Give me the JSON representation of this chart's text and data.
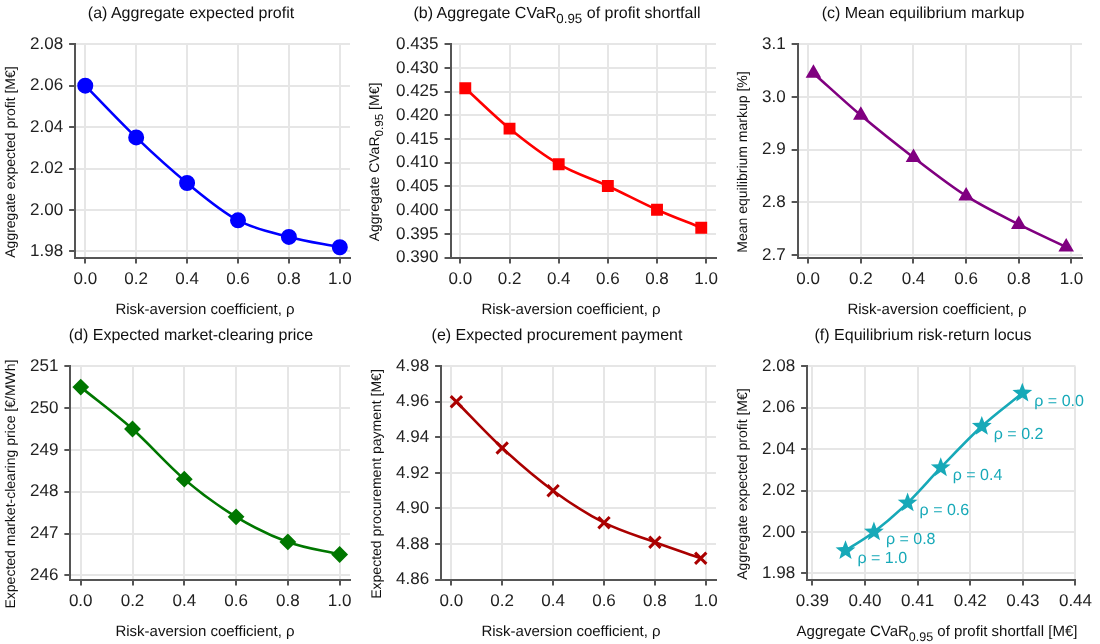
{
  "chart_data": [
    {
      "type": "line",
      "title": "(a) Aggregate expected profit",
      "xlabel": "Risk-aversion coefficient, ρ",
      "ylabel": "Aggregate expected profit [M€]",
      "x": [
        0,
        0.2,
        0.4,
        0.6,
        0.8,
        1.0
      ],
      "series": [
        {
          "color": "#0000ff",
          "values": [
            2.06,
            2.035,
            2.013,
            1.995,
            1.987,
            1.982
          ]
        }
      ],
      "xlim": [
        -0.04,
        1.04
      ],
      "xticks": [
        {
          "value": 0,
          "label": "0.0"
        },
        0.2,
        0.4,
        0.6,
        0.8,
        {
          "value": 1,
          "label": "1.0"
        }
      ],
      "ylim": [
        1.977,
        2.08
      ],
      "yticks": [
        1.98,
        {
          "value": 2,
          "label": "2.00"
        },
        2.02,
        2.04,
        2.06,
        2.08
      ],
      "grid": true,
      "marker": "circle",
      "line_style": "solid"
    },
    {
      "type": "line",
      "title": "(b) Aggregate CVaR$_{0.95}$ of profit shortfall",
      "xlabel": "Risk-aversion coefficient, ρ",
      "ylabel": "Aggregate CVaR$_{0.95}$ [M€]",
      "x": [
        0.02,
        0.2,
        0.4,
        0.6,
        0.8,
        0.98
      ],
      "series": [
        {
          "color": "#ff0000",
          "values": [
            0.4257,
            0.4172,
            0.4097,
            0.4051,
            0.4001,
            0.3963
          ]
        }
      ],
      "xlim": [
        -0.04,
        1.04
      ],
      "xticks": [
        {
          "value": 0,
          "label": "0.0"
        },
        0.2,
        0.4,
        0.6,
        0.8,
        {
          "value": 1,
          "label": "1.0"
        }
      ],
      "ylim": [
        0.39,
        0.435
      ],
      "yticks": [
        {
          "value": 0.39,
          "label": "0.390"
        },
        0.395,
        {
          "value": 0.4,
          "label": "0.400"
        },
        0.405,
        {
          "value": 0.41,
          "label": "0.410"
        },
        0.415,
        {
          "value": 0.42,
          "label": "0.420"
        },
        0.425,
        {
          "value": 0.43,
          "label": "0.430"
        },
        0.435
      ],
      "grid": true,
      "marker": "square",
      "line_style": "solid"
    },
    {
      "type": "line",
      "title": "(c) Mean equilibrium markup",
      "xlabel": "Risk-aversion coefficient, ρ",
      "ylabel": "Mean equilibrium markup [%]",
      "x": [
        0.02,
        0.2,
        0.4,
        0.6,
        0.8,
        0.98
      ],
      "series": [
        {
          "color": "#800080",
          "values": [
            3.045,
            2.965,
            2.885,
            2.812,
            2.758,
            2.715
          ]
        }
      ],
      "xlim": [
        -0.04,
        1.04
      ],
      "xticks": [
        {
          "value": 0,
          "label": "0.0"
        },
        0.2,
        0.4,
        0.6,
        0.8,
        {
          "value": 1,
          "label": "1.0"
        }
      ],
      "ylim": [
        2.695,
        3.1
      ],
      "yticks": [
        2.7,
        2.8,
        2.9,
        {
          "value": 3,
          "label": "3.0"
        },
        3.1
      ],
      "grid": true,
      "marker": "triangle",
      "line_style": "solid"
    },
    {
      "type": "line",
      "title": "(d) Expected market-clearing price",
      "xlabel": "Risk-aversion coefficient, ρ",
      "ylabel": "Expected market-clearing price [€/MWh]",
      "x": [
        0,
        0.2,
        0.4,
        0.6,
        0.8,
        1.0
      ],
      "series": [
        {
          "color": "#007700",
          "values": [
            250.5,
            249.5,
            248.3,
            247.4,
            246.8,
            246.5
          ]
        }
      ],
      "xlim": [
        -0.04,
        1.04
      ],
      "xticks": [
        {
          "value": 0,
          "label": "0.0"
        },
        0.2,
        0.4,
        0.6,
        0.8,
        {
          "value": 1,
          "label": "1.0"
        }
      ],
      "ylim": [
        245.9,
        251
      ],
      "yticks": [
        246,
        247,
        248,
        249,
        250,
        251
      ],
      "grid": true,
      "marker": "diamond",
      "line_style": "solid"
    },
    {
      "type": "line",
      "title": "(e) Expected procurement payment",
      "xlabel": "Risk-aversion coefficient, ρ",
      "ylabel": "Expected procurement payment [M€]",
      "x": [
        0.02,
        0.2,
        0.4,
        0.6,
        0.8,
        0.98
      ],
      "series": [
        {
          "color": "#aa0000",
          "values": [
            4.96,
            4.934,
            4.91,
            4.892,
            4.881,
            4.872
          ]
        }
      ],
      "xlim": [
        -0.04,
        1.04
      ],
      "xticks": [
        {
          "value": 0,
          "label": "0.0"
        },
        0.2,
        0.4,
        0.6,
        0.8,
        {
          "value": 1,
          "label": "1.0"
        }
      ],
      "ylim": [
        4.86,
        4.98
      ],
      "yticks": [
        4.86,
        4.88,
        {
          "value": 4.9,
          "label": "4.90"
        },
        4.92,
        4.94,
        4.96,
        4.98
      ],
      "grid": true,
      "marker": "cross",
      "line_style": "solid"
    },
    {
      "type": "line",
      "title": "(f) Equilibrium risk-return locus",
      "xlabel": "Aggregate CVaR$_{0.95}$ of profit shortfall [M€]",
      "ylabel": "Aggregate expected profit [M€]",
      "x": [
        0.4299,
        0.4222,
        0.4144,
        0.4081,
        0.4017,
        0.3963
      ],
      "series": [
        {
          "color": "#17a9b8",
          "values": [
            2.067,
            2.051,
            2.031,
            2.014,
            2.0,
            1.991
          ]
        }
      ],
      "xlim": [
        0.389,
        0.44
      ],
      "xticks": [
        0.39,
        {
          "value": 0.4,
          "label": "0.40"
        },
        0.41,
        0.42,
        0.43,
        0.44
      ],
      "ylim": [
        1.977,
        2.08
      ],
      "yticks": [
        1.98,
        {
          "value": 2,
          "label": "2.00"
        },
        2.02,
        2.04,
        2.06,
        2.08
      ],
      "grid": true,
      "marker": "star",
      "line_style": "solid",
      "annotations": [
        {
          "text": "ρ = 0.0",
          "x": 0.4299,
          "y": 2.067
        },
        {
          "text": "ρ = 0.2",
          "x": 0.4222,
          "y": 2.051
        },
        {
          "text": "ρ = 0.4",
          "x": 0.4144,
          "y": 2.031
        },
        {
          "text": "ρ = 0.6",
          "x": 0.4081,
          "y": 2.014
        },
        {
          "text": "ρ = 0.8",
          "x": 0.4017,
          "y": 2.0
        },
        {
          "text": "ρ = 1.0",
          "x": 0.3963,
          "y": 1.991
        }
      ]
    }
  ]
}
